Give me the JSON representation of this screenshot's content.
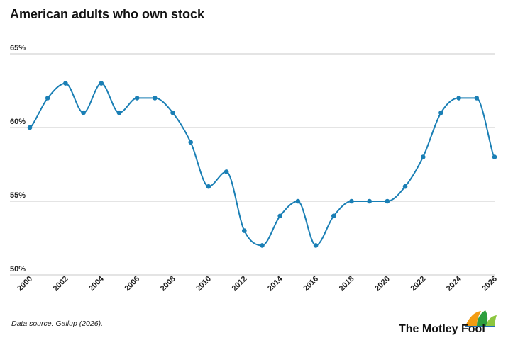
{
  "title": "American adults who own stock",
  "source": "Data source: Gallup (2026).",
  "brand": {
    "name": "The Motley Fool",
    "colors": [
      "#f39c12",
      "#2e9e3e",
      "#8cc63f",
      "#1f6fb5"
    ]
  },
  "colors": {
    "line": "#1a7fb5",
    "point": "#1a7fb5",
    "grid": "#c9c9c9"
  },
  "chart_data": {
    "type": "line",
    "title": "American adults who own stock",
    "x": [
      2000,
      2001,
      2002,
      2003,
      2004,
      2005,
      2006,
      2007,
      2008,
      2009,
      2010,
      2011,
      2012,
      2013,
      2014,
      2015,
      2016,
      2017,
      2018,
      2019,
      2020,
      2021,
      2022,
      2023,
      2024,
      2025,
      2026
    ],
    "values": [
      60,
      62,
      63,
      61,
      63,
      61,
      62,
      62,
      61,
      59,
      56,
      57,
      53,
      52,
      54,
      55,
      52,
      54,
      55,
      55,
      55,
      56,
      58,
      61,
      62,
      62,
      58
    ],
    "xticks": [
      "2000",
      "2002",
      "2004",
      "2006",
      "2008",
      "2010",
      "2012",
      "2014",
      "2016",
      "2018",
      "2020",
      "2022",
      "2024",
      "2026"
    ],
    "yticks": [
      "50%",
      "55%",
      "60%",
      "65%"
    ],
    "ylim": [
      50,
      65
    ],
    "xlim": [
      2000,
      2026
    ],
    "grid": true
  }
}
